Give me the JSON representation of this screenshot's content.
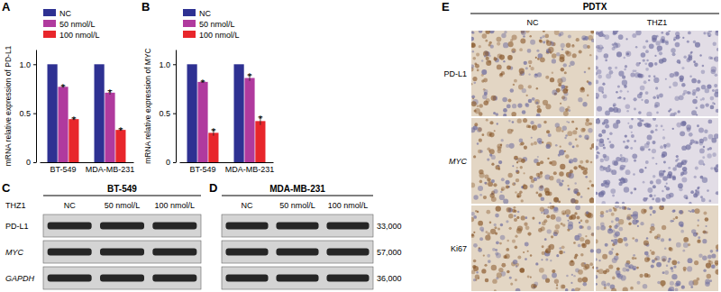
{
  "chart_data": [
    {
      "type": "bar",
      "ylabel": "mRNA relative expression of PD-L1",
      "categories": [
        "BT-549",
        "MDA-MB-231"
      ],
      "series": [
        {
          "name": "NC",
          "color": "#2e3192",
          "values": [
            1,
            1
          ]
        },
        {
          "name": "50 nmol/L",
          "color": "#b03a9e",
          "values": [
            0.77,
            0.71
          ],
          "errors": [
            0.01,
            0.02
          ]
        },
        {
          "name": "100 nmol/L",
          "color": "#e8262b",
          "values": [
            0.44,
            0.33
          ],
          "errors": [
            0.01,
            0.01
          ]
        }
      ],
      "ylim": [
        0,
        1.15
      ],
      "yticks": [
        0,
        0.5,
        {
          "value": 1,
          "label": "1.0"
        }
      ],
      "legend": "upper left",
      "annotations": [
        {
          "text": "*",
          "series": 1,
          "category": 0
        },
        {
          "text": "*",
          "series": 2,
          "category": 0
        },
        {
          "text": "*",
          "series": 1,
          "category": 1
        },
        {
          "text": "*",
          "series": 2,
          "category": 1
        }
      ]
    },
    {
      "type": "bar",
      "ylabel": "mRNA relative expression of MYC",
      "categories": [
        "BT-549",
        "MDA-MB-231"
      ],
      "series": [
        {
          "name": "NC",
          "color": "#2e3192",
          "values": [
            1,
            1
          ]
        },
        {
          "name": "50 nmol/L",
          "color": "#b03a9e",
          "values": [
            0.82,
            0.86
          ],
          "errors": [
            0.005,
            0.03
          ]
        },
        {
          "name": "100 nmol/L",
          "color": "#e8262b",
          "values": [
            0.3,
            0.42
          ],
          "errors": [
            0.03,
            0.04
          ]
        }
      ],
      "ylim": [
        0,
        1.15
      ],
      "yticks": [
        0,
        0.5,
        {
          "value": 1,
          "label": "1.0"
        }
      ],
      "legend": "upper left",
      "annotations": [
        {
          "text": "*",
          "series": 1,
          "category": 0
        },
        {
          "text": "*",
          "series": 2,
          "category": 0
        },
        {
          "text": "*",
          "series": 1,
          "category": 1
        },
        {
          "text": "*",
          "series": 2,
          "category": 1
        }
      ]
    }
  ],
  "panel_labels": [
    "A",
    "B",
    "C",
    "D",
    "E"
  ],
  "blots": [
    {
      "title": "BT-549",
      "treatment": "THZ1",
      "columns": [
        "NC",
        "50 nmol/L",
        "100 nmol/L"
      ],
      "rows": [
        "PD-L1",
        "MYC",
        "GAPDH"
      ]
    },
    {
      "title": "MDA-MB-231",
      "columns": [
        "NC",
        "50 nmol/L",
        "100 nmol/L"
      ],
      "sizes": [
        "33,000",
        "57,000",
        "36,000"
      ]
    }
  ],
  "ihc": {
    "title": "PDTX",
    "columns": [
      "NC",
      "THZ1"
    ],
    "rows": [
      "PD-L1",
      "MYC",
      "Ki67"
    ]
  }
}
